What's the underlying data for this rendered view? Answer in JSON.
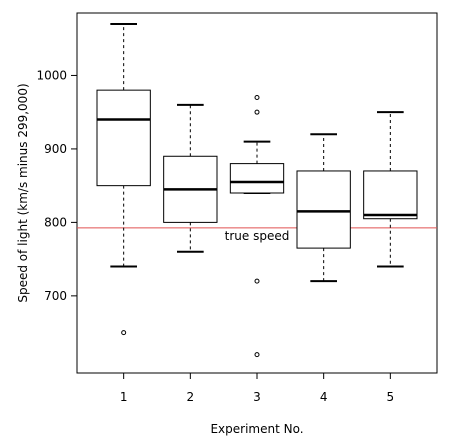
{
  "chart_data": {
    "type": "boxplot",
    "xlabel": "Experiment No.",
    "ylabel": "Speed of light (km/s minus 299,000)",
    "categories": [
      "1",
      "2",
      "3",
      "4",
      "5"
    ],
    "yticks": [
      700,
      800,
      900,
      1000
    ],
    "ylim": [
      595,
      1085
    ],
    "boxes": [
      {
        "label": "1",
        "whisker_low": 740,
        "q1": 850,
        "median": 940,
        "q3": 980,
        "whisker_high": 1070,
        "outliers": [
          650
        ]
      },
      {
        "label": "2",
        "whisker_low": 760,
        "q1": 800,
        "median": 845,
        "q3": 890,
        "whisker_high": 960,
        "outliers": []
      },
      {
        "label": "3",
        "whisker_low": 840,
        "q1": 840,
        "median": 855,
        "q3": 880,
        "whisker_high": 910,
        "outliers": [
          620,
          720,
          950,
          970
        ]
      },
      {
        "label": "4",
        "whisker_low": 720,
        "q1": 765,
        "median": 815,
        "q3": 870,
        "whisker_high": 920,
        "outliers": []
      },
      {
        "label": "5",
        "whisker_low": 740,
        "q1": 805,
        "median": 810,
        "q3": 870,
        "whisker_high": 950,
        "outliers": []
      }
    ],
    "reference_line": {
      "value": 792.458,
      "label": "true speed",
      "color": "#e05050"
    },
    "grid": false,
    "legend": "none"
  }
}
